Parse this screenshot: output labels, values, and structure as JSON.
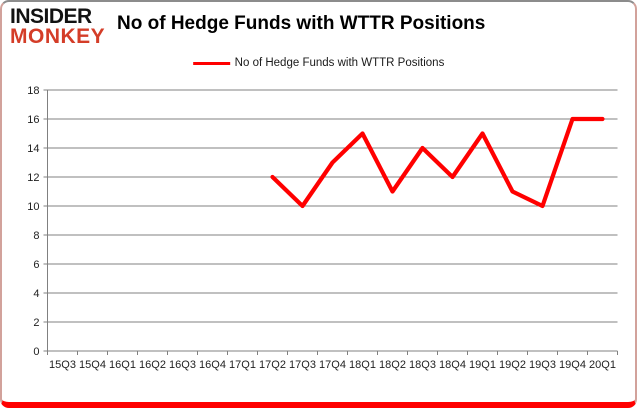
{
  "logo": {
    "line1": "INSIDER",
    "line2": "MONKEY"
  },
  "header": {
    "title": "No of Hedge Funds with WTTR Positions"
  },
  "legend": {
    "label": "No of Hedge Funds with WTTR Positions"
  },
  "colors": {
    "series_line": "#ff0000",
    "grid": "#808080",
    "axis_text": "#1f1f1f",
    "logo_black": "#121212",
    "logo_red": "#d43d28",
    "frame_bottom": "#ff0000",
    "frame_top": "#8c8c8c",
    "frame_sides": "#d2a29b",
    "background": "#ffffff"
  },
  "chart_data": {
    "type": "line",
    "title": "No of Hedge Funds with WTTR Positions",
    "xlabel": "",
    "ylabel": "",
    "categories": [
      "15Q3",
      "15Q4",
      "16Q1",
      "16Q2",
      "16Q3",
      "16Q4",
      "17Q1",
      "17Q2",
      "17Q3",
      "17Q4",
      "18Q1",
      "18Q2",
      "18Q3",
      "18Q4",
      "19Q1",
      "19Q2",
      "19Q3",
      "19Q4",
      "20Q1"
    ],
    "series": [
      {
        "name": "No of Hedge Funds with WTTR Positions",
        "values": [
          null,
          null,
          null,
          null,
          null,
          null,
          null,
          12,
          10,
          13,
          15,
          11,
          14,
          12,
          15,
          11,
          10,
          16,
          16
        ]
      }
    ],
    "ylim": [
      0,
      18
    ],
    "ytick_step": 2,
    "grid": true,
    "legend_position": "top-center"
  }
}
